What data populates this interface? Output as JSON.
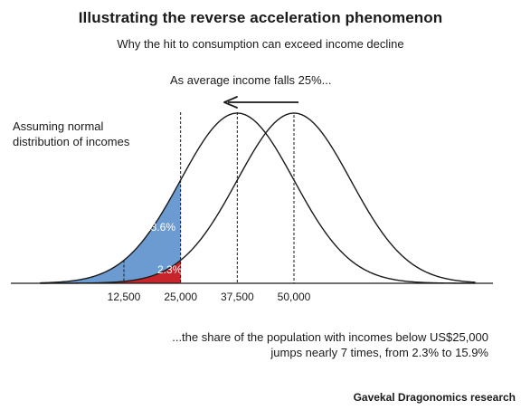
{
  "title": "Illustrating the reverse acceleration phenomenon",
  "subtitle": "Why the hit to consumption can exceed income decline",
  "annotations": {
    "top": "As average income falls 25%...",
    "left_line1": "Assuming normal",
    "left_line2": "distribution of incomes",
    "bottom_line1": "...the share of the population with incomes below US$25,000",
    "bottom_line2": "jumps nearly 7 times, from 2.3% to 15.9%"
  },
  "source": "Gavekal Dragonomics research",
  "colors": {
    "blue_area": "#6b9bd1",
    "red_area": "#c8242b",
    "curve": "#1a1a1a"
  },
  "chart_data": {
    "type": "area",
    "title": "Illustrating the reverse acceleration phenomenon",
    "subtitle": "Why the hit to consumption can exceed income decline",
    "xlabel": "",
    "ylabel": "",
    "x_ticks": [
      12500,
      25000,
      37500,
      50000
    ],
    "tick_labels": [
      "12,500",
      "25,000",
      "37,500",
      "50,000"
    ],
    "xlim": [
      0,
      80000
    ],
    "threshold": 25000,
    "series": [
      {
        "mean": 37500,
        "sd": 12500,
        "fill_below_threshold": "blue",
        "share_label": "13.6%"
      },
      {
        "mean": 50000,
        "sd": 12500,
        "fill_below_threshold": "red",
        "share_label": "2.3%"
      }
    ],
    "grid": false,
    "legend": "none"
  }
}
